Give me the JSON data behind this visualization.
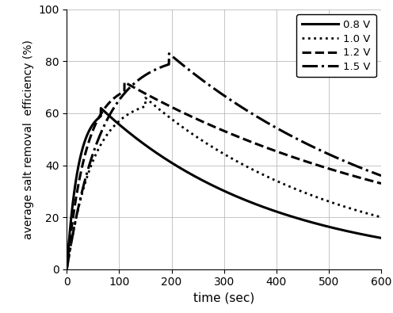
{
  "title": "",
  "xlabel": "time (sec)",
  "ylabel": "average salt removal  efficiency (%)",
  "xlim": [
    0,
    600
  ],
  "ylim": [
    0,
    100
  ],
  "xticks": [
    0,
    100,
    200,
    300,
    400,
    500,
    600
  ],
  "yticks": [
    0,
    20,
    40,
    60,
    80,
    100
  ],
  "grid": true,
  "background_color": "#ffffff",
  "series": [
    {
      "label": "0.8 V",
      "linestyle": "solid",
      "linewidth": 2.2,
      "color": "#000000",
      "peak_x": 65,
      "peak_y": 62,
      "end_y": 12,
      "rise_k_factor": 0.015,
      "decay_power": 0.7
    },
    {
      "label": "1.0 V",
      "linestyle": "dotted",
      "linewidth": 2.0,
      "color": "#000000",
      "peak_x": 150,
      "peak_y": 66,
      "end_y": 20,
      "rise_k_factor": 0.015,
      "decay_power": 0.7
    },
    {
      "label": "1.2 V",
      "linestyle": "dashed",
      "linewidth": 2.2,
      "color": "#000000",
      "peak_x": 110,
      "peak_y": 72,
      "end_y": 33,
      "rise_k_factor": 0.02,
      "decay_power": 0.55
    },
    {
      "label": "1.5 V",
      "linestyle": "dashdot",
      "linewidth": 2.2,
      "color": "#000000",
      "peak_x": 195,
      "peak_y": 83,
      "end_y": 36,
      "rise_k_factor": 0.025,
      "decay_power": 0.45
    }
  ]
}
